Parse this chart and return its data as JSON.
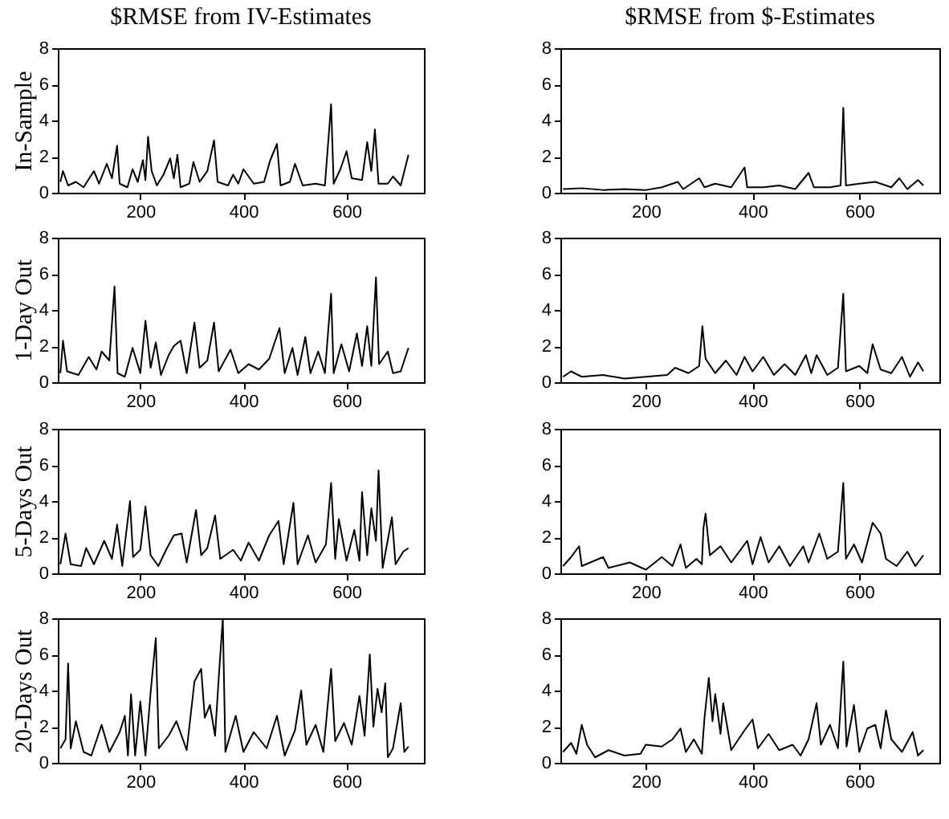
{
  "chart_data": [
    {
      "type": "line",
      "title": "$RMSE from IV-Estimates",
      "ylabel": "In-Sample",
      "color": "#000000",
      "grid": false,
      "xlim": [
        40,
        750
      ],
      "ylim": [
        0,
        8
      ],
      "xticks": [
        200,
        400,
        600
      ],
      "yticks": [
        0,
        2,
        4,
        6,
        8
      ],
      "x": [
        45,
        50,
        60,
        75,
        90,
        110,
        120,
        135,
        145,
        155,
        160,
        175,
        185,
        195,
        205,
        210,
        215,
        222,
        232,
        245,
        258,
        265,
        272,
        278,
        295,
        303,
        315,
        330,
        343,
        350,
        370,
        380,
        390,
        400,
        420,
        440,
        452,
        465,
        472,
        490,
        500,
        515,
        540,
        558,
        570,
        575,
        588,
        600,
        610,
        630,
        640,
        648,
        655,
        662,
        680,
        690,
        705,
        720
      ],
      "values": [
        0.6,
        1.2,
        0.4,
        0.6,
        0.3,
        1.2,
        0.5,
        1.6,
        0.8,
        2.6,
        0.5,
        0.3,
        1.3,
        0.6,
        1.8,
        0.7,
        3.1,
        1.2,
        0.4,
        1.0,
        1.9,
        0.8,
        2.1,
        0.3,
        0.5,
        1.7,
        0.6,
        1.2,
        2.9,
        0.6,
        0.4,
        1.0,
        0.5,
        1.3,
        0.5,
        0.6,
        1.8,
        2.7,
        0.4,
        0.6,
        1.6,
        0.4,
        0.5,
        0.4,
        4.9,
        0.5,
        1.3,
        2.3,
        0.8,
        0.7,
        2.8,
        1.2,
        3.5,
        0.5,
        0.5,
        0.9,
        0.4,
        2.1
      ]
    },
    {
      "type": "line",
      "title": "$RMSE from $-Estimates",
      "color": "#000000",
      "grid": false,
      "xlim": [
        40,
        750
      ],
      "ylim": [
        0,
        8
      ],
      "xticks": [
        200,
        400,
        600
      ],
      "yticks": [
        0,
        2,
        4,
        6,
        8
      ],
      "x": [
        45,
        80,
        120,
        160,
        200,
        230,
        260,
        270,
        300,
        310,
        330,
        360,
        385,
        390,
        420,
        450,
        480,
        505,
        515,
        545,
        565,
        570,
        575,
        600,
        630,
        660,
        675,
        690,
        710,
        720
      ],
      "values": [
        0.2,
        0.25,
        0.15,
        0.2,
        0.15,
        0.3,
        0.6,
        0.2,
        0.8,
        0.3,
        0.5,
        0.3,
        1.4,
        0.3,
        0.3,
        0.4,
        0.2,
        1.1,
        0.3,
        0.3,
        0.4,
        4.7,
        0.4,
        0.5,
        0.6,
        0.3,
        0.8,
        0.2,
        0.7,
        0.4
      ]
    },
    {
      "type": "line",
      "ylabel": "1-Day Out",
      "color": "#000000",
      "grid": false,
      "xlim": [
        40,
        750
      ],
      "ylim": [
        0,
        8
      ],
      "xticks": [
        200,
        400,
        600
      ],
      "yticks": [
        0,
        2,
        4,
        6,
        8
      ],
      "x": [
        45,
        50,
        58,
        80,
        100,
        115,
        125,
        140,
        150,
        156,
        170,
        185,
        200,
        210,
        220,
        230,
        240,
        255,
        265,
        278,
        290,
        305,
        315,
        330,
        343,
        352,
        375,
        390,
        410,
        430,
        450,
        470,
        480,
        495,
        505,
        520,
        530,
        545,
        558,
        570,
        575,
        590,
        605,
        620,
        630,
        640,
        648,
        657,
        663,
        680,
        690,
        705,
        720
      ],
      "values": [
        0.5,
        2.3,
        0.6,
        0.4,
        1.4,
        0.7,
        1.7,
        1.2,
        5.3,
        0.5,
        0.3,
        1.9,
        0.5,
        3.4,
        0.8,
        2.2,
        0.4,
        1.5,
        2.0,
        2.3,
        0.5,
        3.3,
        0.8,
        1.2,
        3.3,
        0.6,
        1.8,
        0.5,
        1.0,
        0.7,
        1.3,
        3.0,
        0.5,
        1.9,
        0.4,
        2.5,
        0.5,
        1.7,
        0.5,
        4.9,
        0.5,
        2.1,
        0.6,
        2.7,
        0.9,
        3.1,
        0.9,
        5.8,
        1.0,
        1.7,
        0.5,
        0.6,
        1.9
      ]
    },
    {
      "type": "line",
      "color": "#000000",
      "grid": false,
      "xlim": [
        40,
        750
      ],
      "ylim": [
        0,
        8
      ],
      "xticks": [
        200,
        400,
        600
      ],
      "yticks": [
        0,
        2,
        4,
        6,
        8
      ],
      "x": [
        45,
        60,
        80,
        120,
        160,
        200,
        240,
        255,
        280,
        300,
        306,
        312,
        330,
        350,
        370,
        385,
        400,
        420,
        440,
        460,
        480,
        500,
        510,
        520,
        540,
        560,
        570,
        575,
        600,
        615,
        625,
        640,
        660,
        680,
        695,
        710,
        720
      ],
      "values": [
        0.3,
        0.6,
        0.3,
        0.4,
        0.2,
        0.3,
        0.4,
        0.8,
        0.5,
        0.9,
        3.1,
        1.3,
        0.5,
        1.2,
        0.4,
        1.4,
        0.6,
        1.4,
        0.4,
        1.0,
        0.4,
        1.5,
        0.5,
        1.5,
        0.4,
        0.8,
        4.9,
        0.6,
        0.9,
        0.5,
        2.1,
        0.7,
        0.5,
        1.4,
        0.3,
        1.1,
        0.6
      ]
    },
    {
      "type": "line",
      "ylabel": "5-Days Out",
      "color": "#000000",
      "grid": false,
      "xlim": [
        40,
        750
      ],
      "ylim": [
        0,
        8
      ],
      "xticks": [
        200,
        400,
        600
      ],
      "yticks": [
        0,
        2,
        4,
        6,
        8
      ],
      "x": [
        45,
        55,
        65,
        85,
        95,
        110,
        130,
        145,
        155,
        165,
        180,
        186,
        200,
        210,
        220,
        235,
        250,
        265,
        280,
        290,
        308,
        318,
        330,
        345,
        355,
        380,
        395,
        410,
        430,
        450,
        468,
        478,
        497,
        505,
        525,
        540,
        560,
        570,
        578,
        585,
        600,
        615,
        625,
        630,
        640,
        648,
        657,
        662,
        670,
        688,
        695,
        710,
        720
      ],
      "values": [
        0.5,
        2.2,
        0.5,
        0.4,
        1.4,
        0.5,
        1.8,
        0.8,
        2.7,
        0.4,
        4.0,
        0.9,
        1.3,
        3.7,
        1.0,
        0.4,
        1.3,
        2.1,
        2.2,
        0.6,
        3.5,
        1.0,
        1.4,
        3.2,
        0.8,
        1.3,
        0.7,
        1.7,
        0.7,
        2.1,
        2.9,
        0.5,
        3.9,
        0.5,
        2.1,
        0.6,
        1.6,
        5.0,
        0.8,
        3.0,
        0.7,
        2.4,
        0.7,
        4.5,
        1.0,
        3.6,
        1.8,
        5.7,
        0.3,
        3.1,
        0.5,
        1.2,
        1.4
      ]
    },
    {
      "type": "line",
      "color": "#000000",
      "grid": false,
      "xlim": [
        40,
        750
      ],
      "ylim": [
        0,
        8
      ],
      "xticks": [
        200,
        400,
        600
      ],
      "yticks": [
        0,
        2,
        4,
        6,
        8
      ],
      "x": [
        45,
        60,
        75,
        80,
        120,
        130,
        170,
        200,
        230,
        250,
        265,
        275,
        295,
        305,
        308,
        312,
        320,
        340,
        360,
        390,
        400,
        415,
        430,
        450,
        470,
        495,
        505,
        525,
        540,
        560,
        570,
        575,
        590,
        605,
        625,
        640,
        650,
        670,
        690,
        705,
        720
      ],
      "values": [
        0.4,
        0.9,
        1.5,
        0.4,
        0.9,
        0.3,
        0.6,
        0.2,
        0.9,
        0.4,
        1.6,
        0.3,
        0.8,
        0.5,
        2.5,
        3.3,
        1.0,
        1.5,
        0.6,
        1.8,
        0.5,
        2.0,
        0.6,
        1.5,
        0.4,
        1.5,
        0.6,
        2.2,
        0.8,
        1.2,
        5.0,
        0.8,
        1.6,
        0.6,
        2.8,
        2.2,
        0.8,
        0.4,
        1.2,
        0.4,
        1.0
      ]
    },
    {
      "type": "line",
      "ylabel": "20-Days Out",
      "color": "#000000",
      "grid": false,
      "xlim": [
        40,
        750
      ],
      "ylim": [
        0,
        8
      ],
      "xticks": [
        200,
        400,
        600
      ],
      "yticks": [
        0,
        2,
        4,
        6,
        8
      ],
      "x": [
        45,
        55,
        60,
        65,
        75,
        90,
        105,
        125,
        140,
        160,
        170,
        176,
        182,
        190,
        200,
        210,
        220,
        230,
        236,
        255,
        270,
        290,
        305,
        318,
        325,
        335,
        345,
        353,
        360,
        365,
        385,
        400,
        420,
        445,
        465,
        480,
        500,
        512,
        522,
        540,
        555,
        570,
        578,
        595,
        610,
        625,
        635,
        645,
        652,
        660,
        668,
        675,
        680,
        690,
        705,
        712,
        720
      ],
      "values": [
        0.8,
        1.3,
        5.5,
        0.8,
        2.3,
        0.6,
        0.4,
        2.1,
        0.6,
        1.7,
        2.6,
        0.4,
        3.8,
        0.4,
        3.4,
        0.4,
        3.9,
        6.9,
        0.8,
        1.5,
        2.3,
        0.7,
        4.5,
        5.2,
        2.5,
        3.2,
        1.5,
        5.1,
        8.0,
        0.6,
        2.6,
        0.6,
        1.7,
        0.8,
        2.6,
        0.4,
        1.8,
        4.0,
        1.0,
        2.1,
        0.6,
        5.2,
        1.2,
        2.2,
        1.0,
        3.7,
        1.5,
        6.0,
        2.0,
        4.1,
        2.8,
        4.4,
        0.3,
        0.8,
        3.3,
        0.6,
        0.9
      ]
    },
    {
      "type": "line",
      "color": "#000000",
      "grid": false,
      "xlim": [
        40,
        750
      ],
      "ylim": [
        0,
        8
      ],
      "xticks": [
        200,
        400,
        600
      ],
      "yticks": [
        0,
        2,
        4,
        6,
        8
      ],
      "x": [
        45,
        60,
        70,
        80,
        90,
        105,
        130,
        160,
        190,
        200,
        230,
        250,
        265,
        275,
        290,
        305,
        310,
        318,
        325,
        330,
        340,
        345,
        360,
        385,
        400,
        410,
        430,
        450,
        475,
        490,
        505,
        520,
        528,
        545,
        560,
        570,
        576,
        590,
        600,
        615,
        630,
        640,
        650,
        660,
        680,
        700,
        710,
        720
      ],
      "values": [
        0.6,
        1.1,
        0.5,
        2.1,
        1.0,
        0.3,
        0.7,
        0.4,
        0.5,
        1.0,
        0.9,
        1.3,
        1.9,
        0.6,
        1.3,
        0.5,
        2.5,
        4.7,
        2.3,
        3.8,
        1.6,
        3.3,
        0.7,
        1.8,
        2.4,
        0.8,
        1.6,
        0.7,
        1.0,
        0.4,
        1.3,
        3.3,
        1.0,
        2.1,
        0.8,
        5.6,
        0.9,
        3.2,
        0.6,
        1.9,
        2.1,
        0.8,
        2.9,
        1.3,
        0.6,
        1.7,
        0.4,
        0.7
      ]
    }
  ]
}
